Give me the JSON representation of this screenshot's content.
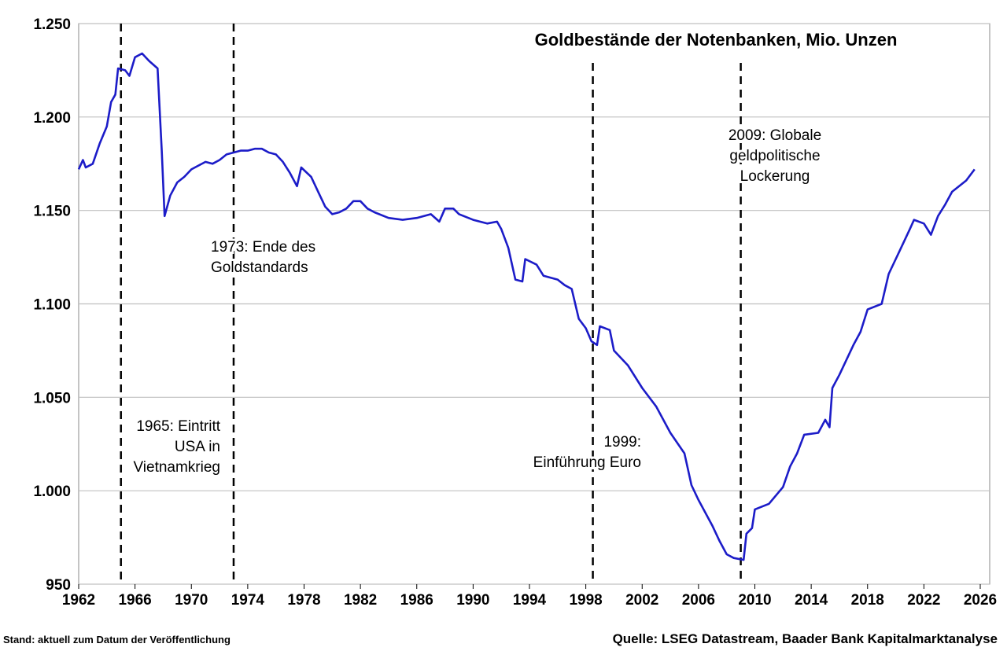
{
  "chart_data": {
    "type": "line",
    "title": "Goldbestände der Notenbanken, Mio. Unzen",
    "footnote": "Stand: aktuell zum Datum der Veröffentlichung",
    "source": "Quelle: LSEG Datastream, Baader Bank Kapitalmarktanalyse",
    "xlim": [
      1962,
      2026
    ],
    "xticks": [
      1962,
      1966,
      1970,
      1974,
      1978,
      1982,
      1986,
      1990,
      1994,
      1998,
      2002,
      2006,
      2010,
      2014,
      2018,
      2022,
      2026
    ],
    "ylim": [
      950,
      1250
    ],
    "yticks": [
      950,
      {
        "value": 1000,
        "label": "1.000"
      },
      {
        "value": 1050,
        "label": "1.050"
      },
      {
        "value": 1100,
        "label": "1.100"
      },
      {
        "value": 1150,
        "label": "1.150"
      },
      {
        "value": 1200,
        "label": "1.200"
      },
      {
        "value": 1250,
        "label": "1.250"
      }
    ],
    "grid": true,
    "annotations": [
      {
        "x": 1965,
        "lines": [
          "1965: Eintritt",
          "USA in",
          "Vietnamkrieg"
        ]
      },
      {
        "x": 1973,
        "lines": [
          "1973: Ende des",
          "Goldstandards"
        ]
      },
      {
        "x": 1998.5,
        "lines": [
          "1999:",
          "Einführung Euro"
        ]
      },
      {
        "x": 2009,
        "lines": [
          "2009: Globale",
          "geldpolitische",
          "Lockerung"
        ]
      }
    ],
    "series": [
      {
        "color": "#1c1cc8",
        "x": [
          1962.0,
          1962.3,
          1962.5,
          1963,
          1963.5,
          1964,
          1964.3,
          1964.6,
          1964.8,
          1965.3,
          1965.6,
          1966,
          1966.5,
          1967,
          1967.6,
          1967.9,
          1968.1,
          1968.5,
          1969,
          1969.5,
          1970,
          1970.5,
          1971,
          1971.5,
          1972,
          1972.5,
          1973,
          1973.5,
          1974,
          1974.5,
          1975,
          1975.5,
          1976,
          1976.5,
          1977,
          1977.5,
          1977.8,
          1978.5,
          1979,
          1979.5,
          1980,
          1980.5,
          1981,
          1981.5,
          1982,
          1982.5,
          1983,
          1984,
          1985,
          1986,
          1987,
          1987.6,
          1988,
          1988.6,
          1989,
          1990,
          1991,
          1991.7,
          1992,
          1992.5,
          1993,
          1993.5,
          1993.7,
          1994.5,
          1995,
          1996,
          1996.5,
          1997,
          1997.5,
          1998,
          1998.4,
          1998.8,
          1999,
          1999.7,
          2000,
          2001,
          2002,
          2003,
          2004,
          2005,
          2005.5,
          2006,
          2007,
          2007.5,
          2008,
          2008.5,
          2009.2,
          2009.4,
          2009.8,
          2010,
          2011,
          2012,
          2012.5,
          2013,
          2013.5,
          2014.5,
          2015,
          2015.3,
          2015.5,
          2016,
          2017,
          2017.5,
          2018,
          2019,
          2019.5,
          2020,
          2021,
          2021.3,
          2022,
          2022.5,
          2023,
          2023.5,
          2024,
          2025,
          2025.6
        ],
        "values": [
          1172,
          1177,
          1173,
          1175,
          1186,
          1195,
          1208,
          1212,
          1226,
          1225,
          1222,
          1232,
          1234,
          1230,
          1226,
          1182,
          1147,
          1158,
          1165,
          1168,
          1172,
          1174,
          1176,
          1175,
          1177,
          1180,
          1181,
          1182,
          1182,
          1183,
          1183,
          1181,
          1180,
          1176,
          1170,
          1163,
          1173,
          1168,
          1160,
          1152,
          1148,
          1149,
          1151,
          1155,
          1155,
          1151,
          1149,
          1146,
          1145,
          1146,
          1148,
          1144,
          1151,
          1151,
          1148,
          1145,
          1143,
          1144,
          1140,
          1130,
          1113,
          1112,
          1124,
          1121,
          1115,
          1113,
          1110,
          1108,
          1092,
          1087,
          1080,
          1078,
          1088,
          1086,
          1075,
          1067,
          1055,
          1045,
          1031,
          1020,
          1003,
          995,
          981,
          973,
          966,
          964,
          963,
          977,
          980,
          990,
          993,
          1002,
          1013,
          1020,
          1030,
          1031,
          1038,
          1034,
          1055,
          1062,
          1078,
          1085,
          1097,
          1100,
          1116,
          1124,
          1140,
          1145,
          1143,
          1137,
          1147,
          1153,
          1160,
          1166,
          1172
        ]
      }
    ]
  }
}
